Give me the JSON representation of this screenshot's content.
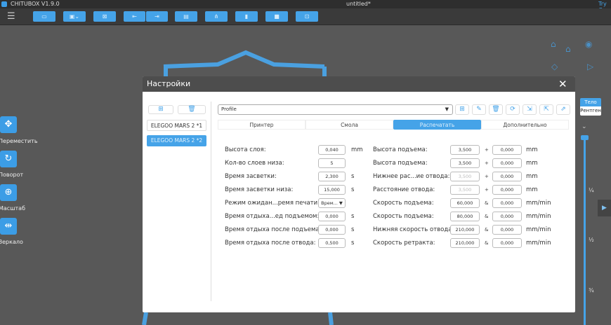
{
  "app": {
    "title": "CHITUBOX V1.9.0",
    "document": "untitled*",
    "try": "Try C"
  },
  "toolbar": {
    "buttons": [
      "open-file",
      "save",
      "repair",
      "import",
      "export",
      "slice-settings",
      "network",
      "resin",
      "print",
      "lock"
    ]
  },
  "left_tools": [
    {
      "label": "Переместить",
      "icon": "move-icon"
    },
    {
      "label": "Поворот",
      "icon": "rotate-icon"
    },
    {
      "label": "Масштаб",
      "icon": "scale-icon"
    },
    {
      "label": "Зеркало",
      "icon": "mirror-icon"
    }
  ],
  "right_panel": {
    "view_modes": [
      "Тело",
      "Рентген"
    ],
    "active_view": "Тело",
    "slider_marks": [
      "¼",
      "½",
      "¾"
    ]
  },
  "dialog": {
    "title": "Настройки",
    "profiles": [
      "ELEGOO MARS 2 *1",
      "ELEGOO MARS 2 *2"
    ],
    "selected_profile_index": 1,
    "profile_select": "Profile",
    "tabs": [
      "Принтер",
      "Смола",
      "Распечатать",
      "Дополнительно"
    ],
    "active_tab": "Распечатать",
    "left_rows": [
      {
        "label": "Высота слоя:",
        "value": "0,040",
        "unit": "mm"
      },
      {
        "label": "Кол-во слоев низа:",
        "value": "5",
        "unit": ""
      },
      {
        "label": "Время засветки:",
        "value": "2,300",
        "unit": "s"
      },
      {
        "label": "Время засветки низа:",
        "value": "15,000",
        "unit": "s"
      },
      {
        "label": "Режим ожидан...ремя печати:",
        "value": "Врем... ▼",
        "unit": ""
      },
      {
        "label": "Время отдыха...ед подъемом:",
        "value": "0,000",
        "unit": "s"
      },
      {
        "label": "Время отдыха после подъема:",
        "value": "0,000",
        "unit": "s"
      },
      {
        "label": "Время отдыха после отвода:",
        "value": "0,500",
        "unit": "s"
      }
    ],
    "right_rows": [
      {
        "label": "Высота подъема:",
        "value": "3,500",
        "op": "+",
        "value2": "0,000",
        "unit": "mm",
        "disabled": false
      },
      {
        "label": "Высота подъема:",
        "value": "3,500",
        "op": "+",
        "value2": "0,000",
        "unit": "mm",
        "disabled": false
      },
      {
        "label": "Нижнее рас...ие отвода:",
        "value": "3,500",
        "op": "+",
        "value2": "0,000",
        "unit": "mm",
        "disabled": true
      },
      {
        "label": "Расстояние отвода:",
        "value": "3,500",
        "op": "+",
        "value2": "0,000",
        "unit": "mm",
        "disabled": true
      },
      {
        "label": "Скорость подъема:",
        "value": "60,000",
        "op": "&",
        "value2": "0,000",
        "unit": "mm/min",
        "disabled": false
      },
      {
        "label": "Скорость подъема:",
        "value": "80,000",
        "op": "&",
        "value2": "0,000",
        "unit": "mm/min",
        "disabled": false
      },
      {
        "label": "Нижняя скорость отвода:",
        "value": "210,000",
        "op": "&",
        "value2": "0,000",
        "unit": "mm/min",
        "disabled": false
      },
      {
        "label": "Скорость ретракта:",
        "value": "210,000",
        "op": "&",
        "value2": "0,000",
        "unit": "mm/min",
        "disabled": false
      }
    ]
  },
  "colors": {
    "accent": "#45a3e8",
    "viewport": "#585858"
  }
}
